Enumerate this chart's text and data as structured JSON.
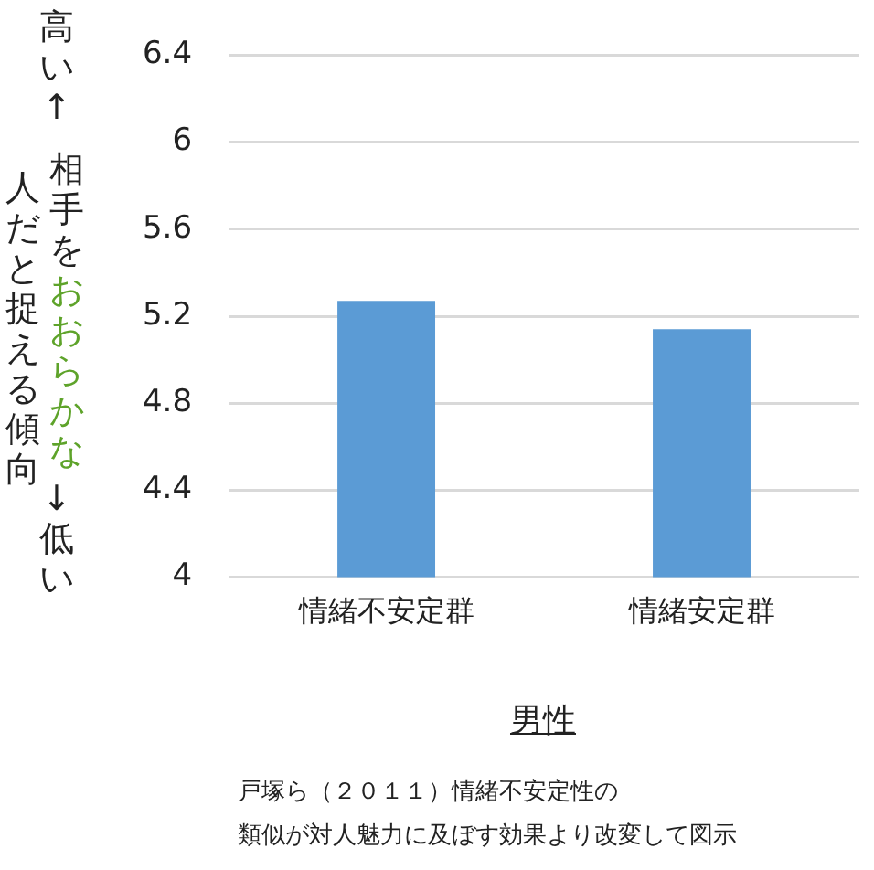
{
  "chart_data": {
    "type": "bar",
    "categories": [
      "情緒不安定群",
      "情緒安定群"
    ],
    "values": [
      5.27,
      5.14
    ],
    "color": "#5b9bd5",
    "ylim": [
      4,
      6.4
    ],
    "yticks": [
      4,
      4.4,
      4.8,
      5.2,
      5.6,
      6,
      6.4
    ],
    "grid": "y",
    "xlabel": "男性",
    "ylabel": "相手をおおらかな人だと捉える傾向",
    "annotations": [
      "高い↑",
      "↓低い",
      "戸塚ら（２０１１）情緒不安定性の類似が対人魅力に及ぼす効果より改変して図示"
    ]
  }
}
